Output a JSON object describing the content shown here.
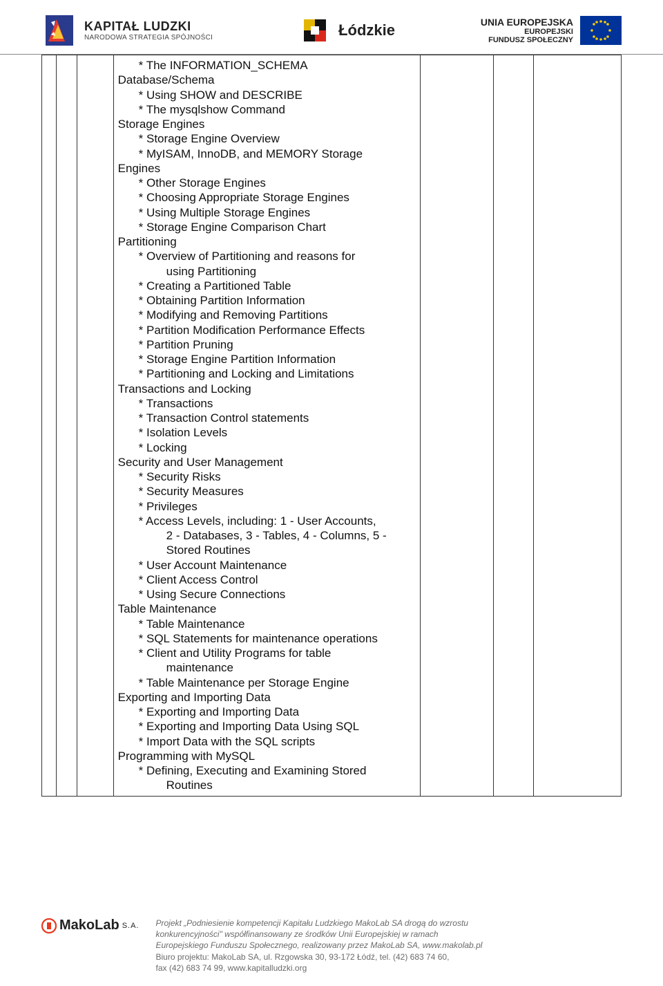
{
  "header": {
    "kl_title": "KAPITAŁ LUDZKI",
    "kl_sub": "NARODOWA STRATEGIA SPÓJNOŚCI",
    "lodz": "Łódzkie",
    "eu_line1": "UNIA EUROPEJSKA",
    "eu_line2": "EUROPEJSKI",
    "eu_line3": "FUNDUSZ SPOŁECZNY"
  },
  "outline": [
    {
      "l": 1,
      "t": "* The INFORMATION_SCHEMA"
    },
    {
      "l": 0,
      "t": "Database/Schema"
    },
    {
      "l": 1,
      "t": "* Using SHOW and DESCRIBE"
    },
    {
      "l": 1,
      "t": "* The mysqlshow Command"
    },
    {
      "l": 0,
      "t": "Storage Engines"
    },
    {
      "l": 1,
      "t": "* Storage Engine Overview"
    },
    {
      "l": 1,
      "t": "* MyISAM, InnoDB, and MEMORY Storage"
    },
    {
      "l": 0,
      "t": "Engines"
    },
    {
      "l": 1,
      "t": "* Other Storage Engines"
    },
    {
      "l": 1,
      "t": "* Choosing Appropriate Storage Engines"
    },
    {
      "l": 1,
      "t": "* Using Multiple Storage Engines"
    },
    {
      "l": 1,
      "t": "* Storage Engine Comparison Chart"
    },
    {
      "l": 0,
      "t": "Partitioning"
    },
    {
      "l": 1,
      "t": "* Overview of Partitioning and reasons for"
    },
    {
      "l": 2,
      "t": "using Partitioning"
    },
    {
      "l": 1,
      "t": "* Creating a Partitioned Table"
    },
    {
      "l": 1,
      "t": "* Obtaining Partition Information"
    },
    {
      "l": 1,
      "t": "* Modifying and Removing Partitions"
    },
    {
      "l": 1,
      "t": "* Partition Modification Performance Effects"
    },
    {
      "l": 1,
      "t": "* Partition Pruning"
    },
    {
      "l": 1,
      "t": "* Storage Engine Partition Information"
    },
    {
      "l": 1,
      "t": "* Partitioning and Locking and Limitations"
    },
    {
      "l": 0,
      "t": "Transactions and Locking"
    },
    {
      "l": 1,
      "t": "* Transactions"
    },
    {
      "l": 1,
      "t": "* Transaction Control statements"
    },
    {
      "l": 1,
      "t": "* Isolation Levels"
    },
    {
      "l": 1,
      "t": "* Locking"
    },
    {
      "l": 0,
      "t": "Security and User Management"
    },
    {
      "l": 1,
      "t": "* Security Risks"
    },
    {
      "l": 1,
      "t": "* Security Measures"
    },
    {
      "l": 1,
      "t": "* Privileges"
    },
    {
      "l": 1,
      "t": "* Access Levels, including: 1 - User Accounts,"
    },
    {
      "l": 2,
      "t": "2 - Databases, 3 - Tables, 4 - Columns, 5 -"
    },
    {
      "l": 2,
      "t": "Stored Routines"
    },
    {
      "l": 1,
      "t": "* User Account Maintenance"
    },
    {
      "l": 1,
      "t": "* Client Access Control"
    },
    {
      "l": 1,
      "t": "* Using Secure Connections"
    },
    {
      "l": 0,
      "t": "Table Maintenance"
    },
    {
      "l": 1,
      "t": "* Table Maintenance"
    },
    {
      "l": 1,
      "t": "* SQL Statements for maintenance operations"
    },
    {
      "l": 1,
      "t": "* Client and Utility Programs for table"
    },
    {
      "l": 2,
      "t": "maintenance"
    },
    {
      "l": 1,
      "t": "* Table Maintenance per Storage Engine"
    },
    {
      "l": 0,
      "t": "Exporting and Importing Data"
    },
    {
      "l": 1,
      "t": "* Exporting and Importing Data"
    },
    {
      "l": 1,
      "t": "* Exporting and Importing Data Using SQL"
    },
    {
      "l": 1,
      "t": "* Import Data with the SQL scripts"
    },
    {
      "l": 0,
      "t": "Programming with MySQL"
    },
    {
      "l": 1,
      "t": "* Defining, Executing and Examining Stored"
    },
    {
      "l": 2,
      "t": "Routines"
    }
  ],
  "footer": {
    "ml_name": "MakoLab",
    "ml_sa": "S.A.",
    "line1a": "Projekt „Podniesienie kompetencji Kapitału Ludzkiego MakoLab SA drogą do wzrostu",
    "line1b": "konkurencyjności\" współfinansowany ze środków Unii Europejskiej w ramach",
    "line1c": "Europejskiego Funduszu Społecznego, realizowany przez MakoLab SA, www.makolab.pl",
    "line2": "Biuro projektu: MakoLab SA, ul. Rzgowska 30, 93-172 Łódź, tel. (42) 683 74 60,",
    "line3": "fax (42) 683 74 99, www.kapitalludzki.org"
  }
}
